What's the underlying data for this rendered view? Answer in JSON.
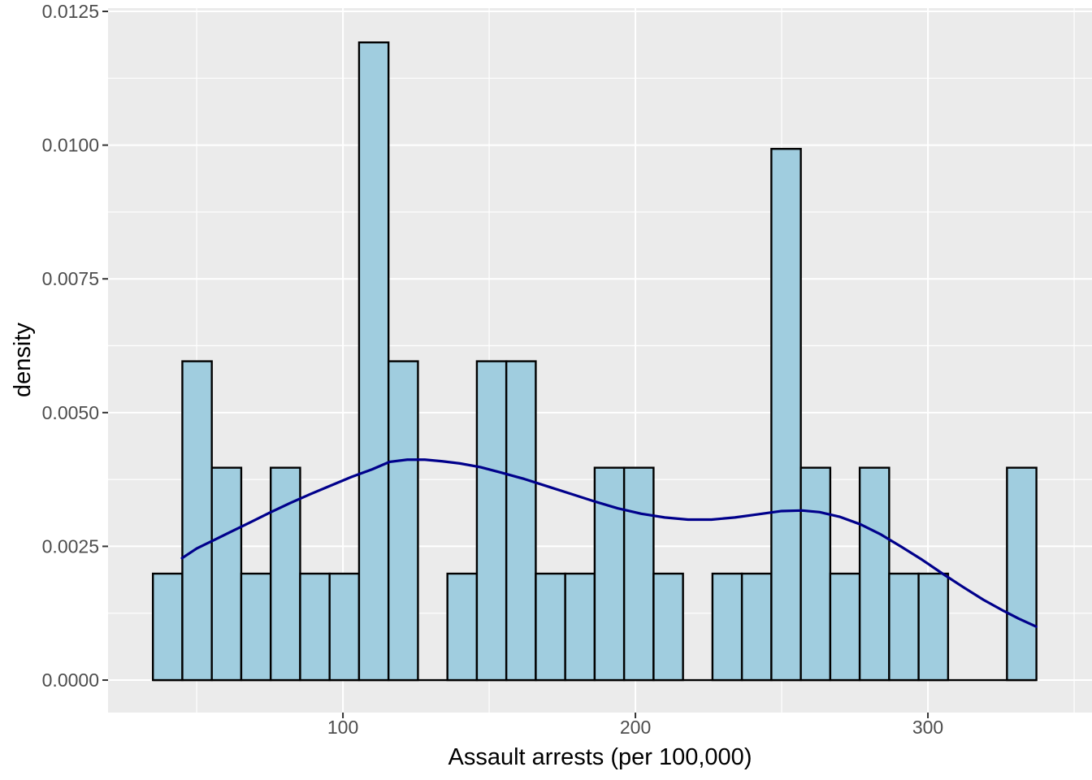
{
  "figure": {
    "background": "#FFFFFF",
    "panel_background": "#EBEBEB",
    "grid_major_color": "#FFFFFF",
    "grid_minor_color": "#FFFFFF",
    "bar_fill": "#A0CDDF",
    "bar_stroke": "#000000",
    "density_line_color": "#00008B",
    "tick_mark_color": "#333333",
    "tick_label_color": "#4D4D4D",
    "axis_title_color": "#000000"
  },
  "chart_data": {
    "type": "bar",
    "subtype": "histogram-with-density-overlay",
    "title": "",
    "xlabel": "Assault arrests (per 100,000)",
    "ylabel": "density",
    "legend": false,
    "grid": true,
    "xlim": [
      19.7,
      356.1
    ],
    "ylim": [
      -0.000607,
      0.012561
    ],
    "x_major_ticks": [
      100,
      200,
      300
    ],
    "x_major_tick_labels": [
      "100",
      "200",
      "300"
    ],
    "x_minor_ticks": [
      50,
      150,
      250,
      350
    ],
    "y_major_ticks": [
      0,
      0.0025,
      0.005,
      0.0075,
      0.01,
      0.0125
    ],
    "y_major_tick_labels": [
      "0.0000",
      "0.0025",
      "0.0050",
      "0.0075",
      "0.0100",
      "0.0125"
    ],
    "y_minor_ticks": [
      0.00125,
      0.00375,
      0.00625,
      0.00875,
      0.01125
    ],
    "histogram": {
      "bin_start": 35.03,
      "bin_width": 10.069,
      "densities": [
        0.00199,
        0.00596,
        0.00397,
        0.00199,
        0.00397,
        0.00199,
        0.00199,
        0.01192,
        0.00596,
        0,
        0.00199,
        0.00596,
        0.00596,
        0.00199,
        0.00199,
        0.00397,
        0.00397,
        0.00199,
        0,
        0.00199,
        0.00199,
        0.00993,
        0.00397,
        0.00199,
        0.00397,
        0.00199,
        0.00199,
        0,
        0,
        0.00397
      ]
    },
    "density_curve": {
      "x": [
        45,
        50,
        56,
        62,
        68,
        75,
        82,
        89,
        96,
        103,
        110,
        116,
        122,
        128,
        134,
        140,
        147,
        154,
        162,
        170,
        178,
        186,
        194,
        202,
        210,
        218,
        226,
        234,
        242,
        250,
        257,
        263,
        270,
        277,
        284,
        291,
        298,
        305,
        312,
        319,
        326,
        331,
        337
      ],
      "y": [
        0.00228,
        0.00246,
        0.00262,
        0.00278,
        0.00294,
        0.00313,
        0.00331,
        0.00348,
        0.00364,
        0.0038,
        0.00394,
        0.00408,
        0.00412,
        0.00412,
        0.00409,
        0.00405,
        0.00398,
        0.00388,
        0.00376,
        0.00362,
        0.00348,
        0.00334,
        0.00321,
        0.00311,
        0.00304,
        0.003,
        0.003,
        0.00304,
        0.0031,
        0.00316,
        0.00317,
        0.00314,
        0.00305,
        0.00291,
        0.00272,
        0.00249,
        0.00225,
        0.00199,
        0.00174,
        0.0015,
        0.00129,
        0.00115,
        0.001
      ]
    }
  }
}
